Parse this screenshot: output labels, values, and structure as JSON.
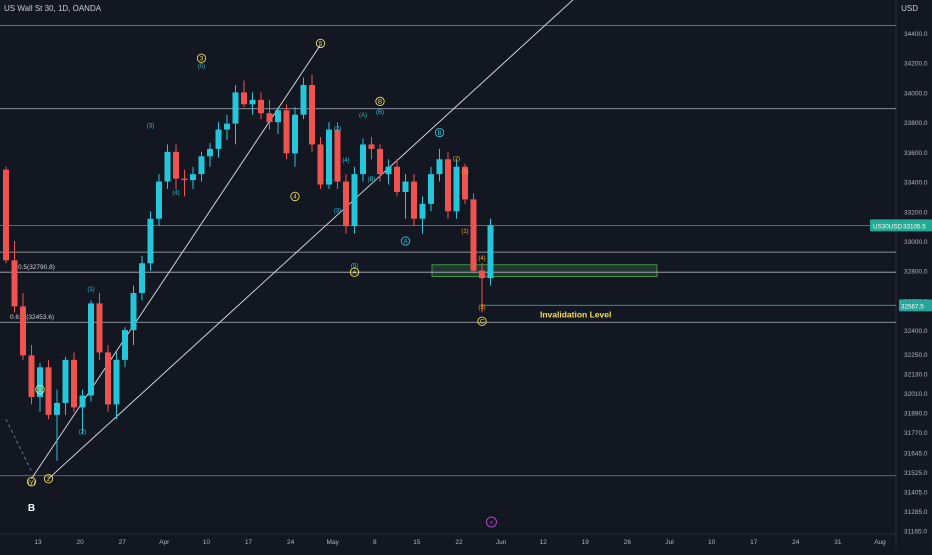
{
  "header": {
    "title": "US Wall St 30, 1D, OANDA",
    "currency": "USD"
  },
  "chart_data": {
    "type": "candlestick",
    "price_axis": {
      "ticks": [
        34400,
        34200,
        34000,
        33800,
        33600,
        33400,
        33200,
        33000,
        32800,
        32600,
        32400,
        32250,
        32130,
        32010,
        31890,
        31770,
        31645,
        31525,
        31405,
        31285,
        31165
      ]
    },
    "date_axis": {
      "labels": [
        "13",
        "20",
        "27",
        "Apr",
        "10",
        "17",
        "24",
        "May",
        "8",
        "15",
        "22",
        "Jun",
        "12",
        "19",
        "26",
        "Jul",
        "10",
        "17",
        "24",
        "31",
        "Aug"
      ]
    },
    "candles": [
      {
        "o": 33480,
        "h": 33500,
        "l": 32850,
        "c": 32870
      },
      {
        "o": 32870,
        "h": 33000,
        "l": 32520,
        "c": 32560
      },
      {
        "o": 32560,
        "h": 32650,
        "l": 32200,
        "c": 32230
      },
      {
        "o": 32230,
        "h": 32300,
        "l": 31900,
        "c": 31950
      },
      {
        "o": 31950,
        "h": 32180,
        "l": 31850,
        "c": 32150
      },
      {
        "o": 32150,
        "h": 32200,
        "l": 31800,
        "c": 31830
      },
      {
        "o": 31830,
        "h": 32000,
        "l": 31520,
        "c": 31910
      },
      {
        "o": 31910,
        "h": 32220,
        "l": 31830,
        "c": 32200
      },
      {
        "o": 32200,
        "h": 32250,
        "l": 31850,
        "c": 31880
      },
      {
        "o": 31880,
        "h": 32000,
        "l": 31700,
        "c": 31960
      },
      {
        "o": 31960,
        "h": 32600,
        "l": 31920,
        "c": 32580
      },
      {
        "o": 32580,
        "h": 32650,
        "l": 32200,
        "c": 32250
      },
      {
        "o": 32250,
        "h": 32300,
        "l": 31850,
        "c": 31900
      },
      {
        "o": 31900,
        "h": 32250,
        "l": 31800,
        "c": 32200
      },
      {
        "o": 32200,
        "h": 32420,
        "l": 32150,
        "c": 32400
      },
      {
        "o": 32400,
        "h": 32700,
        "l": 32300,
        "c": 32650
      },
      {
        "o": 32650,
        "h": 32900,
        "l": 32600,
        "c": 32850
      },
      {
        "o": 32850,
        "h": 33200,
        "l": 32800,
        "c": 33150
      },
      {
        "o": 33150,
        "h": 33450,
        "l": 33100,
        "c": 33400
      },
      {
        "o": 33400,
        "h": 33650,
        "l": 33350,
        "c": 33600
      },
      {
        "o": 33600,
        "h": 33650,
        "l": 33350,
        "c": 33420
      },
      {
        "o": 33420,
        "h": 33480,
        "l": 33300,
        "c": 33410
      },
      {
        "o": 33410,
        "h": 33500,
        "l": 33350,
        "c": 33450
      },
      {
        "o": 33450,
        "h": 33600,
        "l": 33400,
        "c": 33570
      },
      {
        "o": 33570,
        "h": 33660,
        "l": 33500,
        "c": 33620
      },
      {
        "o": 33620,
        "h": 33800,
        "l": 33560,
        "c": 33750
      },
      {
        "o": 33750,
        "h": 33850,
        "l": 33680,
        "c": 33790
      },
      {
        "o": 33790,
        "h": 34050,
        "l": 33650,
        "c": 34000
      },
      {
        "o": 34000,
        "h": 34080,
        "l": 33900,
        "c": 33920
      },
      {
        "o": 33920,
        "h": 34000,
        "l": 33850,
        "c": 33950
      },
      {
        "o": 33950,
        "h": 34000,
        "l": 33820,
        "c": 33860
      },
      {
        "o": 33860,
        "h": 33950,
        "l": 33750,
        "c": 33800
      },
      {
        "o": 33800,
        "h": 33900,
        "l": 33720,
        "c": 33880
      },
      {
        "o": 33880,
        "h": 33920,
        "l": 33550,
        "c": 33590
      },
      {
        "o": 33590,
        "h": 33900,
        "l": 33500,
        "c": 33850
      },
      {
        "o": 33850,
        "h": 34100,
        "l": 33820,
        "c": 34050
      },
      {
        "o": 34050,
        "h": 34120,
        "l": 33600,
        "c": 33650
      },
      {
        "o": 33650,
        "h": 33700,
        "l": 33350,
        "c": 33380
      },
      {
        "o": 33380,
        "h": 33800,
        "l": 33350,
        "c": 33750
      },
      {
        "o": 33750,
        "h": 33800,
        "l": 33350,
        "c": 33400
      },
      {
        "o": 33400,
        "h": 33450,
        "l": 33050,
        "c": 33100
      },
      {
        "o": 33100,
        "h": 33500,
        "l": 33050,
        "c": 33450
      },
      {
        "o": 33450,
        "h": 33690,
        "l": 33400,
        "c": 33650
      },
      {
        "o": 33650,
        "h": 33700,
        "l": 33550,
        "c": 33620
      },
      {
        "o": 33620,
        "h": 33650,
        "l": 33400,
        "c": 33450
      },
      {
        "o": 33450,
        "h": 33550,
        "l": 33380,
        "c": 33500
      },
      {
        "o": 33500,
        "h": 33550,
        "l": 33300,
        "c": 33330
      },
      {
        "o": 33330,
        "h": 33450,
        "l": 33150,
        "c": 33400
      },
      {
        "o": 33400,
        "h": 33450,
        "l": 33100,
        "c": 33150
      },
      {
        "o": 33150,
        "h": 33300,
        "l": 33050,
        "c": 33250
      },
      {
        "o": 33250,
        "h": 33500,
        "l": 33200,
        "c": 33450
      },
      {
        "o": 33450,
        "h": 33620,
        "l": 33400,
        "c": 33550
      },
      {
        "o": 33550,
        "h": 33600,
        "l": 33150,
        "c": 33200
      },
      {
        "o": 33200,
        "h": 33550,
        "l": 33150,
        "c": 33500
      },
      {
        "o": 33500,
        "h": 33520,
        "l": 33250,
        "c": 33280
      },
      {
        "o": 33280,
        "h": 33320,
        "l": 32780,
        "c": 32800
      },
      {
        "o": 32800,
        "h": 32850,
        "l": 32520,
        "c": 32750
      },
      {
        "o": 32750,
        "h": 33150,
        "l": 32700,
        "c": 33105
      }
    ],
    "horizontal_levels": [
      {
        "price": 34450,
        "color": "#787b86"
      },
      {
        "price": 33890,
        "color": "#b2b5be"
      },
      {
        "price": 32925,
        "color": "#b2b5be"
      },
      {
        "price": 32790,
        "color": "#b2b5be"
      },
      {
        "price": 32453,
        "color": "#b2b5be"
      },
      {
        "price": 31420,
        "color": "#787b86"
      },
      {
        "price": 33105,
        "color": "#22ab94"
      }
    ],
    "fib_labels": [
      {
        "text": "0.5(32790.8)",
        "price": 32790.8
      },
      {
        "text": "0.618(32453.6)",
        "price": 32453.6
      }
    ],
    "invalidation": {
      "text": "Invalidation Level",
      "price": 32567,
      "color": "#f5e04d"
    },
    "support_zone": {
      "from_price": 32760,
      "to_price": 32840,
      "color": "#4caf50"
    },
    "current_price": {
      "symbol": "US30USD",
      "value": "33105.5",
      "color": "#22ab94"
    },
    "lower_tag": {
      "value": "32567.5",
      "color": "#26a69a"
    },
    "wave_labels": [
      {
        "text": "B",
        "candle": 3,
        "price": 31200,
        "style": "plain",
        "color": "#ffffff"
      },
      {
        "text": "(y)",
        "candle": 3,
        "price": 31380,
        "style": "circle",
        "color": "#f5e04d"
      },
      {
        "text": "2",
        "candle": 5,
        "price": 31400,
        "style": "circle",
        "color": "#f5e04d"
      },
      {
        "text": "1",
        "candle": 4,
        "price": 32000,
        "style": "circle",
        "color": "#f5e04d"
      },
      {
        "text": "(1)",
        "candle": 10,
        "price": 32680,
        "style": "plain",
        "color": "#26c6da"
      },
      {
        "text": "(2)",
        "candle": 9,
        "price": 31720,
        "style": "plain",
        "color": "#26c6da"
      },
      {
        "text": "(3)",
        "candle": 17,
        "price": 33780,
        "style": "plain",
        "color": "#26c6da"
      },
      {
        "text": "(4)",
        "candle": 20,
        "price": 33330,
        "style": "plain",
        "color": "#26c6da"
      },
      {
        "text": "3",
        "candle": 23,
        "price": 34230,
        "style": "circle",
        "color": "#f5e04d"
      },
      {
        "text": "(5)",
        "candle": 23,
        "price": 34180,
        "style": "plain",
        "color": "#26c6da"
      },
      {
        "text": "5",
        "candle": 37,
        "price": 34330,
        "style": "circle",
        "color": "#f5e04d"
      },
      {
        "text": "4",
        "candle": 34,
        "price": 33300,
        "style": "circle",
        "color": "#f5e04d"
      },
      {
        "text": "A",
        "candle": 41,
        "price": 32790,
        "style": "circle",
        "color": "#f5e04d"
      },
      {
        "text": "(5)",
        "candle": 41,
        "price": 32840,
        "style": "plain",
        "color": "#26c6da"
      },
      {
        "text": "(B)",
        "candle": 44,
        "price": 33870,
        "style": "plain",
        "color": "#26c6da"
      },
      {
        "text": "B",
        "candle": 44,
        "price": 33940,
        "style": "circle",
        "color": "#f5e04d"
      },
      {
        "text": "(A)",
        "candle": 42,
        "price": 33850,
        "style": "plain",
        "color": "#26c6da"
      },
      {
        "text": "(4)",
        "candle": 40,
        "price": 33550,
        "style": "plain",
        "color": "#26c6da"
      },
      {
        "text": "(1)",
        "candle": 38,
        "price": 33420,
        "style": "plain",
        "color": "#26c6da"
      },
      {
        "text": "(3)",
        "candle": 39,
        "price": 33210,
        "style": "plain",
        "color": "#26c6da"
      },
      {
        "text": "(2)",
        "candle": 39,
        "price": 33760,
        "style": "plain",
        "color": "#26c6da"
      },
      {
        "text": "(B)",
        "candle": 43,
        "price": 33420,
        "style": "plain",
        "color": "#26c6da"
      },
      {
        "text": "A",
        "candle": 47,
        "price": 33000,
        "style": "circle",
        "color": "#26c6da"
      },
      {
        "text": "B",
        "candle": 51,
        "price": 33730,
        "style": "circle",
        "color": "#26c6da"
      },
      {
        "text": "(1)",
        "candle": 54,
        "price": 33470,
        "style": "plain",
        "color": "#f5a623"
      },
      {
        "text": "(2)",
        "candle": 53,
        "price": 33560,
        "style": "plain",
        "color": "#f5a623"
      },
      {
        "text": "(1)",
        "candle": 54,
        "price": 33070,
        "style": "plain",
        "color": "#f5a623"
      },
      {
        "text": "(4)",
        "candle": 56,
        "price": 32890,
        "style": "plain",
        "color": "#f5a623"
      },
      {
        "text": "(5)",
        "candle": 56,
        "price": 32560,
        "style": "plain",
        "color": "#f5a623"
      },
      {
        "text": "C",
        "candle": 56,
        "price": 32460,
        "style": "circle",
        "color": "#f5e04d"
      }
    ],
    "event_icon": {
      "candle": 57,
      "symbol": "⚡"
    },
    "diagonal_lines": [
      {
        "from": {
          "candle": 3,
          "price": 31400
        },
        "to": {
          "candle": 37,
          "price": 34320
        },
        "color": "#e0e3eb"
      },
      {
        "from": {
          "candle": 5,
          "price": 31400
        },
        "to": {
          "candle": 72,
          "price": 34900
        },
        "color": "#e0e3eb"
      },
      {
        "from": {
          "candle": 0,
          "price": 31800
        },
        "to": {
          "candle": 3,
          "price": 31450
        },
        "color": "#787b86"
      }
    ]
  }
}
